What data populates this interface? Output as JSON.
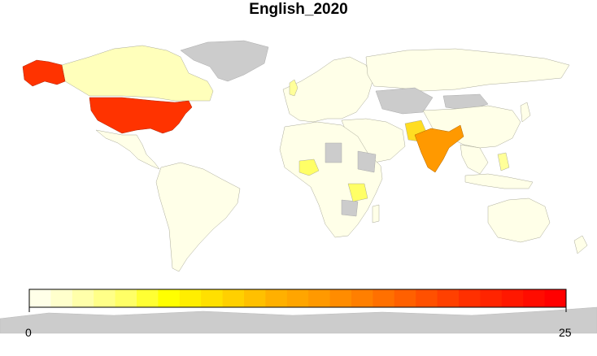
{
  "title": "English_2020",
  "legend": {
    "min_label": "0",
    "max_label": "25",
    "min_value": 0,
    "max_value": 25,
    "bins": 25,
    "no_data_color": "#CCCCCC",
    "colors": [
      "#FFFFE8",
      "#FFFFCC",
      "#FFFFAA",
      "#FFFF88",
      "#FFFF66",
      "#FFFF33",
      "#FFFF00",
      "#FFEE00",
      "#FFE000",
      "#FFD000",
      "#FFC000",
      "#FFB000",
      "#FFA500",
      "#FF9900",
      "#FF8C00",
      "#FF7F00",
      "#FF7000",
      "#FF6000",
      "#FF5000",
      "#FF4000",
      "#FF3000",
      "#FF2400",
      "#FF1800",
      "#FF0C00",
      "#FF0000"
    ]
  },
  "highlighted_regions": {
    "united_states": "#FF3300",
    "alaska": "#FF3300",
    "india": "#FF9900",
    "pakistan": "#FFDD22",
    "nigeria": "#FFFF66",
    "tanzania": "#FFFF66",
    "canada": "#FFFFBB",
    "uk": "#FFFF99",
    "philippines": "#FFFF99"
  }
}
